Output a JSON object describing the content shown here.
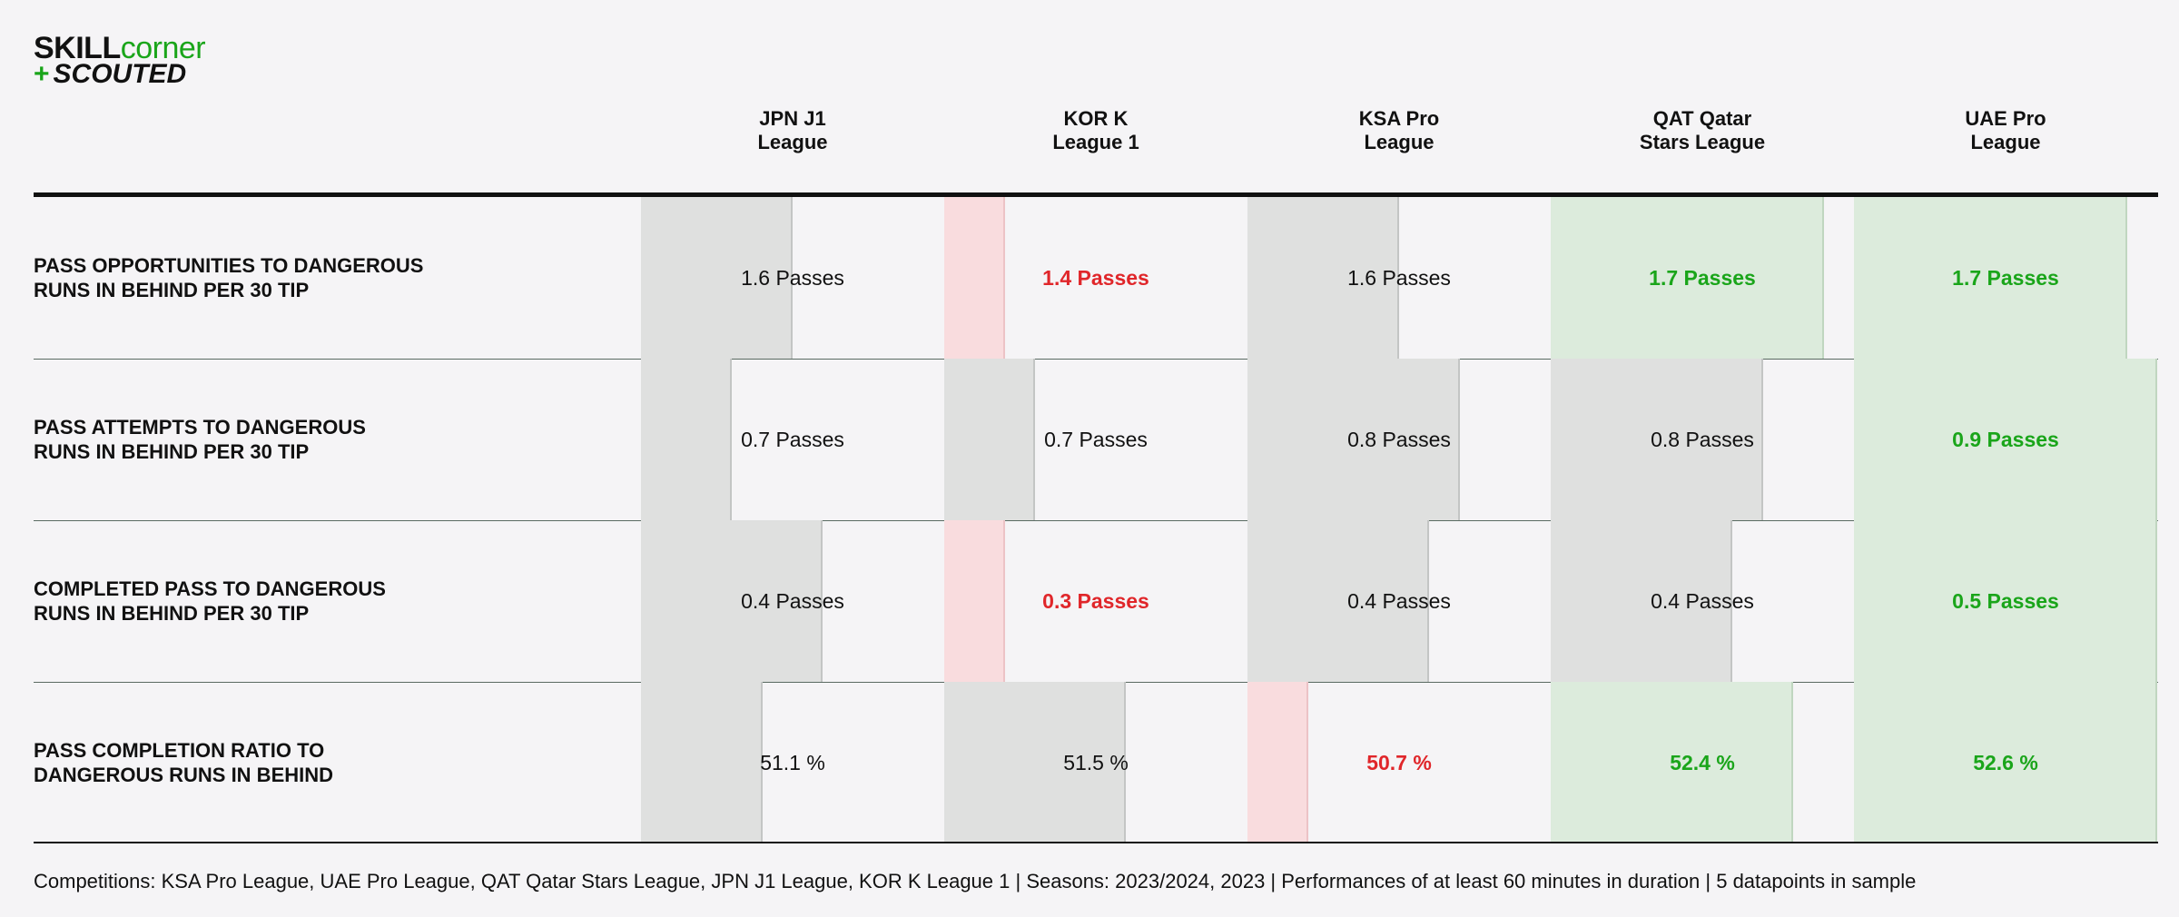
{
  "logo": {
    "word1a": "SKILL",
    "word1b": "corner",
    "plus": "+",
    "word2": "SCOUTED"
  },
  "colors": {
    "neutral_bar": "#dfe0df",
    "low_bar": "#f9dcde",
    "high_bar": "#dcebdc",
    "low_text": "#e0262a",
    "high_text": "#1aa51a"
  },
  "chart_data": {
    "type": "table",
    "columns": [
      "JPN J1\nLeague",
      "KOR K\nLeague 1",
      "KSA Pro\nLeague",
      "QAT Qatar\nStars League",
      "UAE Pro\nLeague"
    ],
    "rows": [
      {
        "label": "PASS OPPORTUNITIES TO DANGEROUS\nRUNS IN BEHIND PER 30 TIP",
        "values": [
          1.6,
          1.4,
          1.6,
          1.7,
          1.7
        ],
        "labels": [
          "1.6 Passes",
          "1.4 Passes",
          "1.6 Passes",
          "1.7 Passes",
          "1.7 Passes"
        ],
        "fill": [
          0.5,
          0.2,
          0.5,
          0.9,
          0.9
        ],
        "status": [
          "neutral",
          "low",
          "neutral",
          "high",
          "high"
        ]
      },
      {
        "label": "PASS ATTEMPTS TO DANGEROUS\nRUNS IN BEHIND PER 30 TIP",
        "values": [
          0.7,
          0.7,
          0.8,
          0.8,
          0.9
        ],
        "labels": [
          "0.7 Passes",
          "0.7 Passes",
          "0.8 Passes",
          "0.8 Passes",
          "0.9 Passes"
        ],
        "fill": [
          0.3,
          0.3,
          0.7,
          0.7,
          1.0
        ],
        "status": [
          "neutral",
          "neutral",
          "neutral",
          "neutral",
          "high"
        ]
      },
      {
        "label": "COMPLETED PASS TO DANGEROUS\nRUNS IN BEHIND PER 30 TIP",
        "values": [
          0.4,
          0.3,
          0.4,
          0.4,
          0.5
        ],
        "labels": [
          "0.4 Passes",
          "0.3 Passes",
          "0.4 Passes",
          "0.4 Passes",
          "0.5 Passes"
        ],
        "fill": [
          0.6,
          0.2,
          0.6,
          0.6,
          1.0
        ],
        "status": [
          "neutral",
          "low",
          "neutral",
          "neutral",
          "high"
        ]
      },
      {
        "label": "PASS COMPLETION RATIO TO\nDANGEROUS RUNS IN BEHIND",
        "values": [
          51.1,
          51.5,
          50.7,
          52.4,
          52.6
        ],
        "labels": [
          "51.1 %",
          "51.5 %",
          "50.7 %",
          "52.4 %",
          "52.6 %"
        ],
        "fill": [
          0.4,
          0.6,
          0.2,
          0.8,
          1.0
        ],
        "status": [
          "neutral",
          "neutral",
          "low",
          "high",
          "high"
        ]
      }
    ]
  },
  "footer": "Competitions: KSA Pro League, UAE Pro League, QAT Qatar Stars League, JPN J1 League, KOR K League 1 | Seasons: 2023/2024, 2023 | Performances of at least 60 minutes in duration | 5 datapoints in sample"
}
